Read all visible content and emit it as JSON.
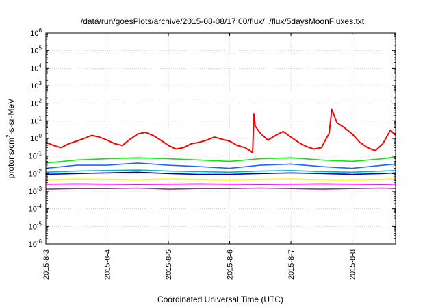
{
  "chart_data": {
    "type": "line",
    "title": "/data/run/goesPlots/archive/2015-08-08/17:00/flux/../flux/5daysMoonFluxes.txt",
    "xlabel": "Coordinated Universal Time (UTC)",
    "ylabel": "protons/cm²-s-sr-MeV",
    "ylabel_parts": [
      "protons/cm",
      "2",
      "-s-sr-MeV"
    ],
    "yscale": "log",
    "ylim": [
      1e-06,
      1000000.0
    ],
    "xlim": [
      "2015-08-03T00:00",
      "2015-08-08T17:00"
    ],
    "y_ticks": [
      {
        "value": 1e-06,
        "base": "10",
        "exp": "-6"
      },
      {
        "value": 1e-05,
        "base": "10",
        "exp": "-5"
      },
      {
        "value": 0.0001,
        "base": "10",
        "exp": "-4"
      },
      {
        "value": 0.001,
        "base": "10",
        "exp": "-3"
      },
      {
        "value": 0.01,
        "base": "10",
        "exp": "-2"
      },
      {
        "value": 0.1,
        "base": "10",
        "exp": "-1"
      },
      {
        "value": 1,
        "base": "10",
        "exp": "0"
      },
      {
        "value": 10,
        "base": "10",
        "exp": "1"
      },
      {
        "value": 100,
        "base": "10",
        "exp": "2"
      },
      {
        "value": 1000,
        "base": "10",
        "exp": "3"
      },
      {
        "value": 10000,
        "base": "10",
        "exp": "4"
      },
      {
        "value": 100000,
        "base": "10",
        "exp": "5"
      },
      {
        "value": 1000000,
        "base": "10",
        "exp": "6"
      }
    ],
    "x_ticks": [
      {
        "value": "2015-08-03T00:00",
        "label": "2015-8-3"
      },
      {
        "value": "2015-08-04T00:00",
        "label": "2015-8-4"
      },
      {
        "value": "2015-08-05T00:00",
        "label": "2015-8-5"
      },
      {
        "value": "2015-08-06T00:00",
        "label": "2015-8-6"
      },
      {
        "value": "2015-08-07T00:00",
        "label": "2015-8-7"
      },
      {
        "value": "2015-08-08T00:00",
        "label": "2015-8-8"
      }
    ],
    "grid": true,
    "series": [
      {
        "color": "#ff0000",
        "x": [
          "2015-08-03T00:00",
          "2015-08-03T03:00",
          "2015-08-03T06:00",
          "2015-08-03T09:00",
          "2015-08-03T12:00",
          "2015-08-03T15:00",
          "2015-08-03T18:00",
          "2015-08-03T21:00",
          "2015-08-04T00:00",
          "2015-08-04T03:00",
          "2015-08-04T06:00",
          "2015-08-04T09:00",
          "2015-08-04T12:00",
          "2015-08-04T15:00",
          "2015-08-04T18:00",
          "2015-08-04T21:00",
          "2015-08-05T00:00",
          "2015-08-05T03:00",
          "2015-08-05T06:00",
          "2015-08-05T09:00",
          "2015-08-05T12:00",
          "2015-08-05T15:00",
          "2015-08-05T18:00",
          "2015-08-05T21:00",
          "2015-08-06T00:00",
          "2015-08-06T03:00",
          "2015-08-06T06:00",
          "2015-08-06T08:00",
          "2015-08-06T09:00",
          "2015-08-06T09:30",
          "2015-08-06T10:00",
          "2015-08-06T12:00",
          "2015-08-06T15:00",
          "2015-08-06T18:00",
          "2015-08-06T21:00",
          "2015-08-07T00:00",
          "2015-08-07T03:00",
          "2015-08-07T06:00",
          "2015-08-07T09:00",
          "2015-08-07T12:00",
          "2015-08-07T13:00",
          "2015-08-07T15:00",
          "2015-08-07T16:00",
          "2015-08-07T18:00",
          "2015-08-07T21:00",
          "2015-08-08T00:00",
          "2015-08-08T03:00",
          "2015-08-08T06:00",
          "2015-08-08T09:00",
          "2015-08-08T12:00",
          "2015-08-08T15:00",
          "2015-08-08T17:00"
        ],
        "y": [
          0.6,
          0.4,
          0.3,
          0.5,
          0.7,
          1.0,
          1.5,
          1.2,
          0.8,
          0.5,
          0.4,
          0.9,
          1.8,
          2.2,
          1.5,
          0.8,
          0.4,
          0.25,
          0.3,
          0.5,
          0.6,
          0.8,
          1.2,
          0.9,
          0.7,
          0.4,
          0.3,
          0.2,
          0.15,
          25,
          5,
          2,
          0.8,
          1.5,
          2.5,
          1.2,
          0.6,
          0.35,
          0.25,
          0.3,
          0.6,
          2,
          45,
          8,
          4,
          1.8,
          0.6,
          0.3,
          0.2,
          0.5,
          3,
          1.5
        ]
      },
      {
        "color": "#00ee00",
        "x": [
          "2015-08-03T00:00",
          "2015-08-03T12:00",
          "2015-08-04T00:00",
          "2015-08-04T12:00",
          "2015-08-05T00:00",
          "2015-08-05T12:00",
          "2015-08-06T00:00",
          "2015-08-06T12:00",
          "2015-08-07T00:00",
          "2015-08-07T12:00",
          "2015-08-08T00:00",
          "2015-08-08T12:00",
          "2015-08-08T17:00"
        ],
        "y": [
          0.04,
          0.06,
          0.07,
          0.08,
          0.07,
          0.06,
          0.05,
          0.07,
          0.08,
          0.06,
          0.05,
          0.07,
          0.09
        ]
      },
      {
        "color": "#1e64ff",
        "x": [
          "2015-08-03T00:00",
          "2015-08-03T12:00",
          "2015-08-04T00:00",
          "2015-08-04T12:00",
          "2015-08-05T00:00",
          "2015-08-05T12:00",
          "2015-08-06T00:00",
          "2015-08-06T12:00",
          "2015-08-07T00:00",
          "2015-08-07T12:00",
          "2015-08-08T00:00",
          "2015-08-08T12:00",
          "2015-08-08T17:00"
        ],
        "y": [
          0.02,
          0.03,
          0.03,
          0.04,
          0.03,
          0.025,
          0.02,
          0.03,
          0.035,
          0.025,
          0.02,
          0.03,
          0.035
        ]
      },
      {
        "color": "#00b4c8",
        "x": [
          "2015-08-03T00:00",
          "2015-08-03T12:00",
          "2015-08-04T00:00",
          "2015-08-04T12:00",
          "2015-08-05T00:00",
          "2015-08-05T12:00",
          "2015-08-06T00:00",
          "2015-08-06T12:00",
          "2015-08-07T00:00",
          "2015-08-07T12:00",
          "2015-08-08T00:00",
          "2015-08-08T12:00",
          "2015-08-08T17:00"
        ],
        "y": [
          0.012,
          0.014,
          0.015,
          0.016,
          0.014,
          0.013,
          0.012,
          0.014,
          0.015,
          0.013,
          0.012,
          0.014,
          0.015
        ]
      },
      {
        "color": "#0000c8",
        "x": [
          "2015-08-03T00:00",
          "2015-08-03T12:00",
          "2015-08-04T00:00",
          "2015-08-04T12:00",
          "2015-08-05T00:00",
          "2015-08-05T12:00",
          "2015-08-06T00:00",
          "2015-08-06T12:00",
          "2015-08-07T00:00",
          "2015-08-07T12:00",
          "2015-08-08T00:00",
          "2015-08-08T12:00",
          "2015-08-08T17:00"
        ],
        "y": [
          0.009,
          0.01,
          0.011,
          0.012,
          0.01,
          0.009,
          0.009,
          0.01,
          0.011,
          0.01,
          0.009,
          0.01,
          0.011
        ]
      },
      {
        "color": "#ffff00",
        "x": [
          "2015-08-03T00:00",
          "2015-08-03T12:00",
          "2015-08-04T00:00",
          "2015-08-04T12:00",
          "2015-08-05T00:00",
          "2015-08-05T12:00",
          "2015-08-06T00:00",
          "2015-08-06T12:00",
          "2015-08-07T00:00",
          "2015-08-07T12:00",
          "2015-08-08T00:00",
          "2015-08-08T12:00",
          "2015-08-08T17:00"
        ],
        "y": [
          0.0045,
          0.005,
          0.0048,
          0.0046,
          0.005,
          0.0047,
          0.0045,
          0.0048,
          0.005,
          0.0046,
          0.0045,
          0.0048,
          0.005
        ]
      },
      {
        "color": "#ff00ff",
        "x": [
          "2015-08-03T00:00",
          "2015-08-03T12:00",
          "2015-08-04T00:00",
          "2015-08-04T12:00",
          "2015-08-05T00:00",
          "2015-08-05T12:00",
          "2015-08-06T00:00",
          "2015-08-06T12:00",
          "2015-08-07T00:00",
          "2015-08-07T12:00",
          "2015-08-08T00:00",
          "2015-08-08T12:00",
          "2015-08-08T17:00"
        ],
        "y": [
          0.0025,
          0.0026,
          0.0025,
          0.0024,
          0.0025,
          0.0026,
          0.0025,
          0.0024,
          0.0025,
          0.0026,
          0.0025,
          0.0024,
          0.0025
        ]
      },
      {
        "color": "#8c3c8c",
        "x": [
          "2015-08-03T00:00",
          "2015-08-03T12:00",
          "2015-08-04T00:00",
          "2015-08-04T12:00",
          "2015-08-05T00:00",
          "2015-08-05T12:00",
          "2015-08-06T00:00",
          "2015-08-06T12:00",
          "2015-08-07T00:00",
          "2015-08-07T12:00",
          "2015-08-08T00:00",
          "2015-08-08T12:00",
          "2015-08-08T17:00"
        ],
        "y": [
          0.0013,
          0.0014,
          0.0014,
          0.0015,
          0.0013,
          0.0014,
          0.0014,
          0.0015,
          0.0014,
          0.0013,
          0.0014,
          0.0015,
          0.0014
        ]
      }
    ]
  }
}
